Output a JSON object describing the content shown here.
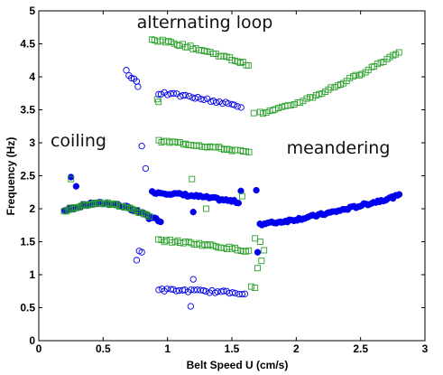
{
  "chart_data": {
    "type": "scatter",
    "title": "",
    "xlabel": "Belt Speed U (cm/s)",
    "ylabel": "Frequency (Hz)",
    "xlim": [
      0,
      3
    ],
    "ylim": [
      0,
      5
    ],
    "xticks": [
      "0",
      "0.5",
      "1",
      "1.5",
      "2",
      "2.5",
      "3"
    ],
    "yticks": [
      "0",
      "0.5",
      "1",
      "1.5",
      "2",
      "2.5",
      "3",
      "3.5",
      "4",
      "4.5",
      "5"
    ],
    "grid": false,
    "legend": "none",
    "annotations": [
      {
        "text": "alternating loop",
        "x": 1.3,
        "y": 4.83
      },
      {
        "text": "coiling",
        "x": 0.3,
        "y": 2.98
      },
      {
        "text": "meandering",
        "x": 2.4,
        "y": 2.9
      }
    ],
    "series": [
      {
        "marker": "filled-circle",
        "color": "#0000ee",
        "segments": [
          {
            "x": [
              0.2,
              0.86
            ],
            "y": [
              1.97,
              1.88
            ],
            "peak": 2.08,
            "n": 52
          },
          {
            "x": [
              0.86,
              0.95
            ],
            "y": [
              1.86,
              1.82
            ],
            "n": 6
          },
          {
            "x": [
              0.88,
              1.55
            ],
            "y": [
              2.25,
              2.1
            ],
            "n": 42
          },
          {
            "x": [
              1.72,
              2.8
            ],
            "y": [
              1.77,
              2.2
            ],
            "n": 72
          }
        ],
        "extra": [
          [
            0.25,
            2.48
          ],
          [
            0.29,
            2.34
          ],
          [
            1.2,
            1.95
          ],
          [
            1.57,
            2.27
          ],
          [
            1.69,
            2.28
          ],
          [
            1.7,
            1.34
          ]
        ]
      },
      {
        "marker": "open-square",
        "color": "#2ca02c",
        "segments": [
          {
            "x": [
              0.2,
              0.86
            ],
            "y": [
              1.97,
              1.88
            ],
            "peak": 2.08,
            "n": 46
          },
          {
            "x": [
              0.88,
              1.63
            ],
            "y": [
              4.56,
              4.18
            ],
            "n": 36
          },
          {
            "x": [
              0.93,
              1.63
            ],
            "y": [
              3.02,
              2.85
            ],
            "n": 34
          },
          {
            "x": [
              0.93,
              1.63
            ],
            "y": [
              1.52,
              1.36
            ],
            "n": 34
          },
          {
            "x": [
              1.72,
              2.8
            ],
            "y": [
              3.45,
              4.38
            ],
            "n": 46
          }
        ],
        "extra": [
          [
            0.25,
            2.45
          ],
          [
            1.19,
            2.45
          ],
          [
            1.3,
            2.0
          ],
          [
            1.58,
            2.19
          ],
          [
            1.65,
            0.82
          ],
          [
            1.68,
            0.8
          ],
          [
            1.67,
            3.45
          ],
          [
            1.68,
            1.55
          ],
          [
            1.7,
            1.1
          ],
          [
            1.73,
            1.21
          ],
          [
            1.75,
            1.37
          ],
          [
            1.72,
            1.5
          ],
          [
            0.92,
            3.66
          ],
          [
            0.93,
            3.62
          ]
        ]
      },
      {
        "marker": "open-circle",
        "color": "#0000ee",
        "segments": [
          {
            "x": [
              0.93,
              1.57
            ],
            "y": [
              3.75,
              3.55
            ],
            "n": 28
          },
          {
            "x": [
              0.93,
              1.6
            ],
            "y": [
              0.77,
              0.72
            ],
            "n": 30
          }
        ],
        "extra": [
          [
            0.68,
            4.1
          ],
          [
            0.7,
            4.02
          ],
          [
            0.72,
            3.98
          ],
          [
            0.74,
            3.97
          ],
          [
            0.76,
            3.93
          ],
          [
            0.77,
            3.85
          ],
          [
            0.8,
            2.95
          ],
          [
            0.83,
            2.61
          ],
          [
            0.78,
            1.36
          ],
          [
            0.8,
            1.34
          ],
          [
            0.76,
            1.22
          ],
          [
            1.2,
            0.93
          ],
          [
            1.18,
            0.52
          ]
        ]
      }
    ]
  }
}
